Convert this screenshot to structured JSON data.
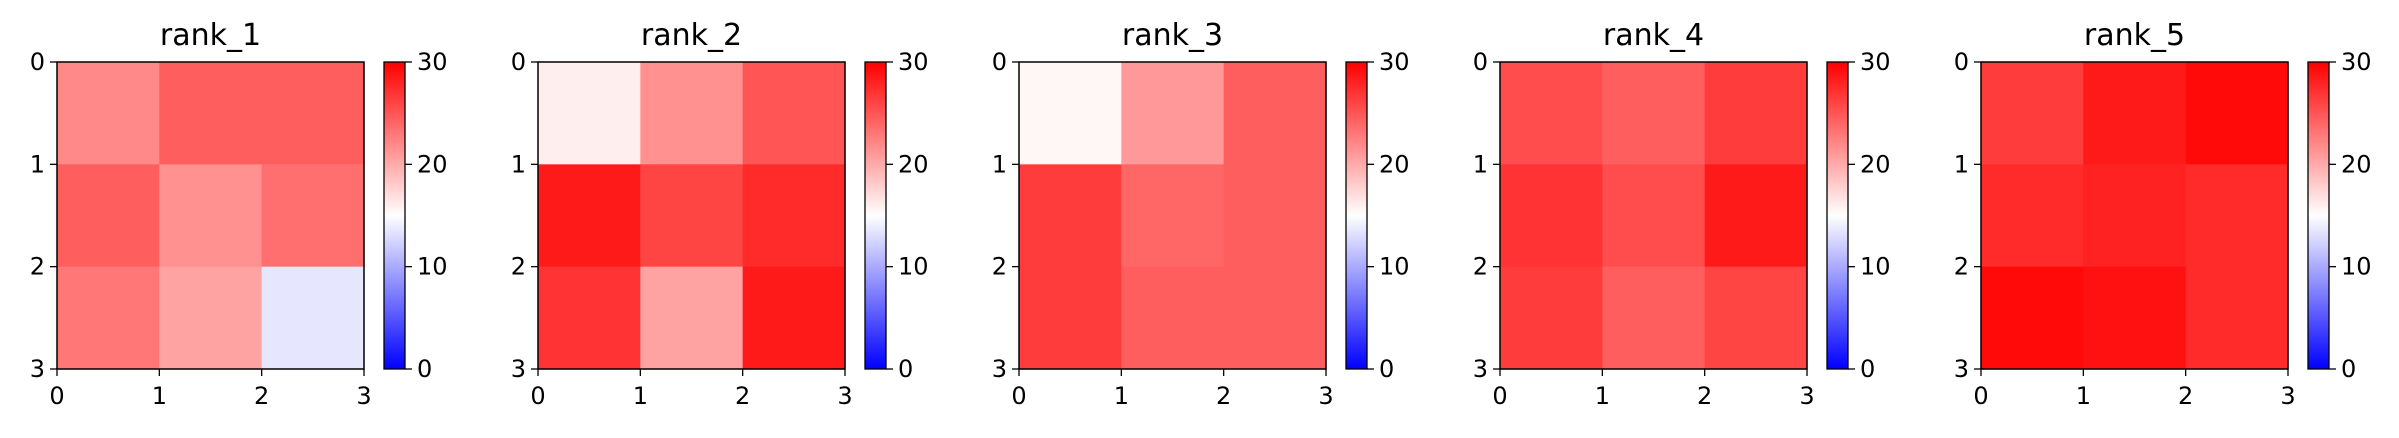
{
  "colormap": {
    "name": "bwr",
    "vmin": 0,
    "vmax": 30,
    "low_color": "#0000ff",
    "mid_color": "#ffffff",
    "high_color": "#ff0000"
  },
  "chart_data": [
    {
      "type": "heatmap",
      "title": "rank_1",
      "xticks": [
        "0",
        "1",
        "2",
        "3"
      ],
      "yticks": [
        "0",
        "1",
        "2",
        "3"
      ],
      "colorbar_ticks": [
        "0",
        "10",
        "20",
        "30"
      ],
      "values": [
        [
          22,
          24.5,
          24.5
        ],
        [
          24.5,
          21.5,
          23.5
        ],
        [
          23,
          20.5,
          13.5
        ]
      ]
    },
    {
      "type": "heatmap",
      "title": "rank_2",
      "xticks": [
        "0",
        "1",
        "2",
        "3"
      ],
      "yticks": [
        "0",
        "1",
        "2",
        "3"
      ],
      "colorbar_ticks": [
        "0",
        "10",
        "20",
        "30"
      ],
      "values": [
        [
          16,
          21.5,
          25
        ],
        [
          28.5,
          26,
          27.5
        ],
        [
          27,
          20.5,
          28.5
        ]
      ]
    },
    {
      "type": "heatmap",
      "title": "rank_3",
      "xticks": [
        "0",
        "1",
        "2",
        "3"
      ],
      "yticks": [
        "0",
        "1",
        "2",
        "3"
      ],
      "colorbar_ticks": [
        "0",
        "10",
        "20",
        "30"
      ],
      "values": [
        [
          15.5,
          21,
          24.5
        ],
        [
          26.5,
          24,
          24.5
        ],
        [
          26.5,
          24.5,
          24.5
        ]
      ]
    },
    {
      "type": "heatmap",
      "title": "rank_4",
      "xticks": [
        "0",
        "1",
        "2",
        "3"
      ],
      "yticks": [
        "0",
        "1",
        "2",
        "3"
      ],
      "colorbar_ticks": [
        "0",
        "10",
        "20",
        "30"
      ],
      "values": [
        [
          25.5,
          24.5,
          26.5
        ],
        [
          27,
          25.5,
          28.5
        ],
        [
          26.5,
          24.5,
          26
        ]
      ]
    },
    {
      "type": "heatmap",
      "title": "rank_5",
      "xticks": [
        "0",
        "1",
        "2",
        "3"
      ],
      "yticks": [
        "0",
        "1",
        "2",
        "3"
      ],
      "colorbar_ticks": [
        "0",
        "10",
        "20",
        "30"
      ],
      "values": [
        [
          26.5,
          28.5,
          29.5
        ],
        [
          27.5,
          28,
          27.5
        ],
        [
          29.5,
          29,
          27.5
        ]
      ]
    }
  ]
}
